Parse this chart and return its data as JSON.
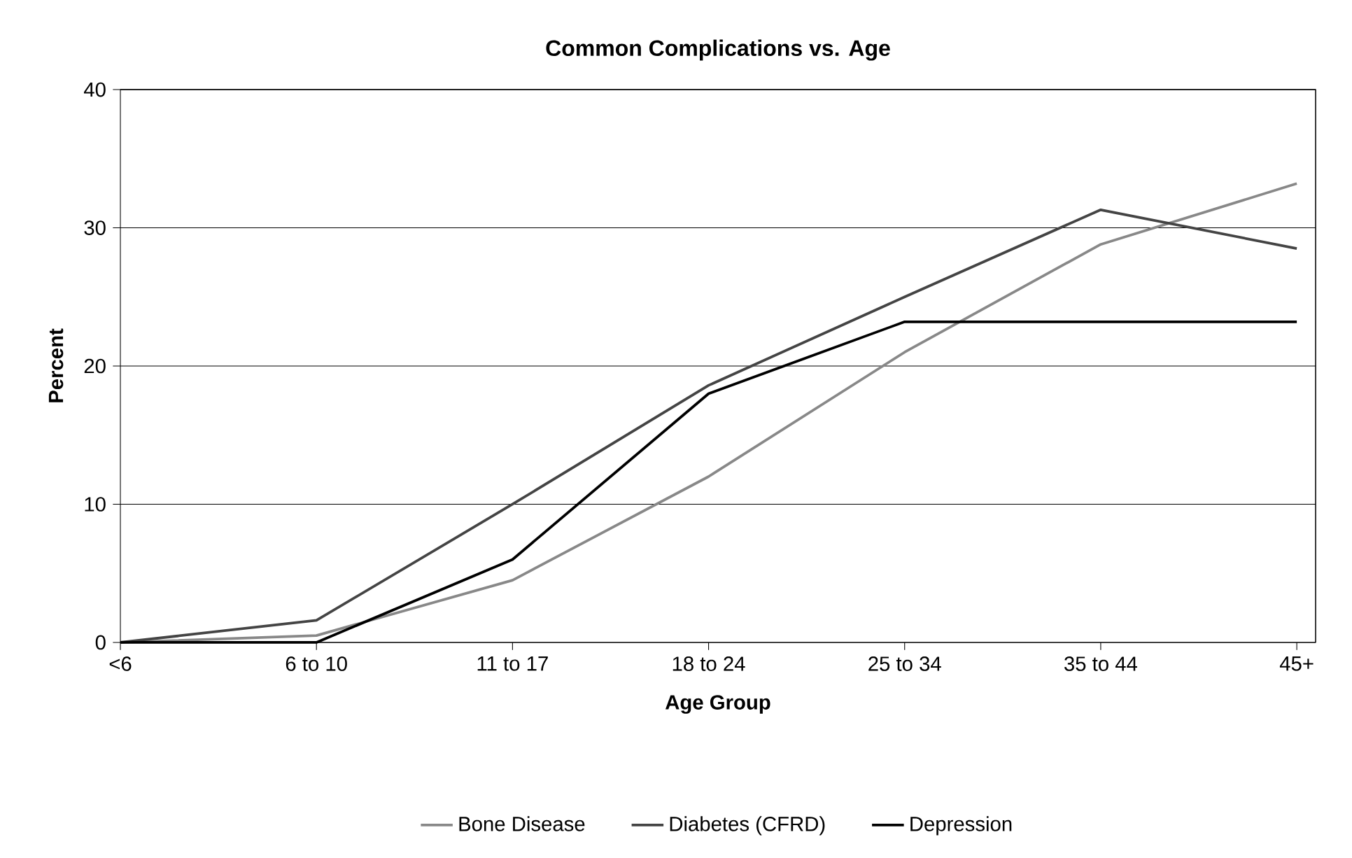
{
  "chart_data": {
    "type": "line",
    "title": "Common Complications vs. Age",
    "xlabel": "Age Group",
    "ylabel": "Percent",
    "categories": [
      "<6",
      "6 to 10",
      "11 to 17",
      "18 to 24",
      "25 to 34",
      "35 to 44",
      "45+"
    ],
    "series": [
      {
        "name": "Bone Disease",
        "color": "#888888",
        "values": [
          0,
          0.5,
          4.5,
          12,
          21,
          28.8,
          33.2
        ]
      },
      {
        "name": "Diabetes (CFRD)",
        "color": "#444444",
        "values": [
          0,
          1.6,
          10,
          18.6,
          25,
          31.3,
          28.5
        ]
      },
      {
        "name": "Depression",
        "color": "#000000",
        "values": [
          0,
          0,
          6,
          18,
          23.2,
          23.2,
          23.2
        ]
      }
    ],
    "ylim": [
      0,
      40
    ],
    "yticks": [
      0,
      10,
      20,
      30,
      40
    ],
    "grid": "y",
    "legend": "bottom",
    "marker": "none",
    "line_style": "solid"
  }
}
